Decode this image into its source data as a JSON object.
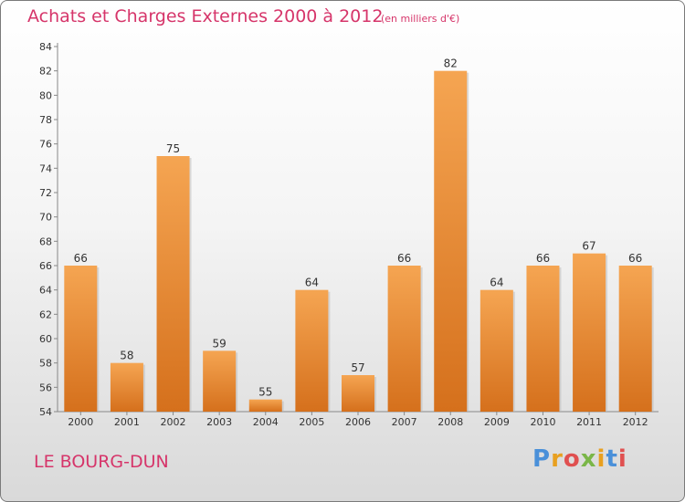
{
  "header": {
    "title": "Achats et Charges Externes 2000 à 2012",
    "subtitle": "(en milliers d'€)"
  },
  "footer": {
    "commune": "LE BOURG-DUN",
    "logo_letters": [
      "P",
      "r",
      "o",
      "x",
      "i",
      "t",
      "i"
    ],
    "logo_colors": [
      "#4a90d9",
      "#e8a020",
      "#e05050",
      "#7ab648",
      "#e8a020",
      "#4a90d9",
      "#e05050"
    ]
  },
  "chart_data": {
    "type": "bar",
    "title": "Achats et Charges Externes 2000 à 2012",
    "subtitle": "(en milliers d'€)",
    "categories": [
      "2000",
      "2001",
      "2002",
      "2003",
      "2004",
      "2005",
      "2006",
      "2007",
      "2008",
      "2009",
      "2010",
      "2011",
      "2012"
    ],
    "values": [
      66,
      58,
      75,
      59,
      55,
      64,
      57,
      66,
      82,
      64,
      66,
      67,
      66
    ],
    "ylim": [
      54,
      84
    ],
    "yticks": [
      54,
      56,
      58,
      60,
      62,
      64,
      66,
      68,
      70,
      72,
      74,
      76,
      78,
      80,
      82,
      84
    ],
    "grid": false,
    "bar_color_top": "#f5a552",
    "bar_color_bottom": "#d5701c"
  }
}
